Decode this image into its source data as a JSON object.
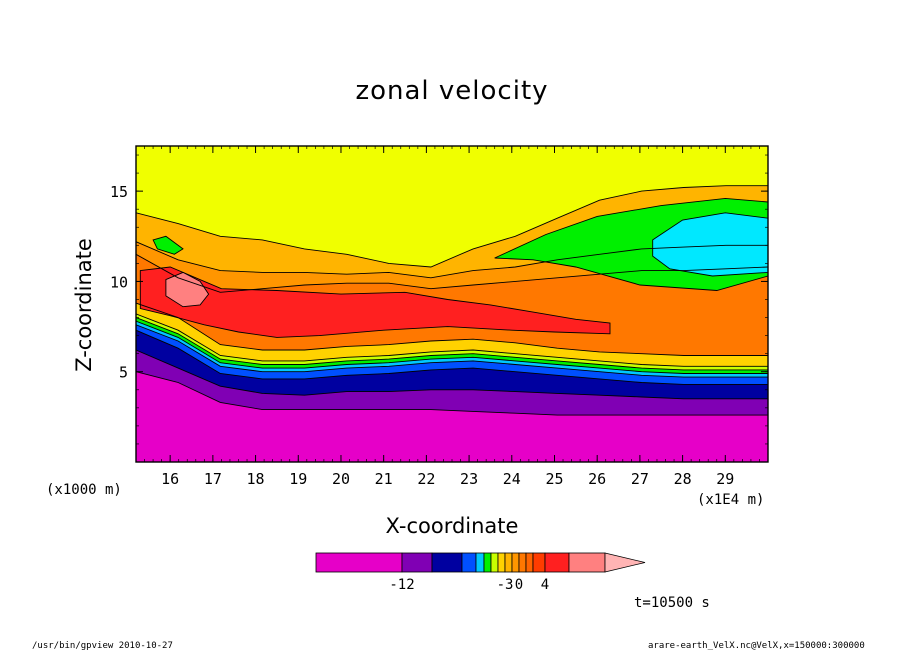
{
  "chart_data": {
    "type": "heatmap",
    "title": "zonal velocity",
    "xlabel": "X-coordinate",
    "ylabel": "Z-coordinate",
    "x_unit_label": "(x1E4 m)",
    "y_unit_label": "(x1000 m)",
    "x_ticks": [
      16,
      17,
      18,
      19,
      20,
      21,
      22,
      23,
      24,
      25,
      26,
      27,
      28,
      29
    ],
    "y_ticks": [
      5,
      10,
      15
    ],
    "xlim": [
      15.2,
      30.0
    ],
    "ylim": [
      0.0,
      17.5
    ],
    "colorbar": {
      "levels": [
        -15,
        -12,
        -10,
        -8,
        -6,
        -5,
        -4,
        -3,
        -2,
        -1,
        0,
        1,
        2,
        3,
        4,
        6,
        8
      ],
      "colors": [
        "#e600c8",
        "#8000b4",
        "#0000a0",
        "#0050ff",
        "#00c8ff",
        "#00f000",
        "#c8ff00",
        "#ffd200",
        "#ffb400",
        "#ff9600",
        "#ff7800",
        "#ff6400",
        "#ff3c00",
        "#ff2020",
        "#ff8080",
        "#ffb4b4"
      ],
      "tick_labels": [
        "-12",
        "-3",
        "0",
        "4"
      ],
      "tick_values": [
        -12,
        -3,
        0,
        4
      ]
    },
    "regions": [
      {
        "name": "magenta",
        "value_range": "< -12",
        "color": "#e600c8",
        "lower": [
          0,
          0,
          0,
          0,
          0,
          0,
          0,
          0,
          0,
          0,
          0,
          0,
          0,
          0,
          0,
          0
        ],
        "upper": [
          5.0,
          4.4,
          3.3,
          2.9,
          2.9,
          2.9,
          2.9,
          2.9,
          2.8,
          2.7,
          2.6,
          2.6,
          2.6,
          2.6,
          2.6,
          2.6
        ]
      },
      {
        "name": "purple",
        "value_range": "-12 to -10",
        "color": "#8000b4",
        "lower": [
          5.0,
          4.4,
          3.3,
          2.9,
          2.9,
          2.9,
          2.9,
          2.9,
          2.8,
          2.7,
          2.6,
          2.6,
          2.6,
          2.6,
          2.6,
          2.6
        ],
        "upper": [
          6.2,
          5.2,
          4.2,
          3.8,
          3.7,
          3.9,
          3.9,
          4.0,
          4.0,
          3.9,
          3.8,
          3.7,
          3.6,
          3.5,
          3.5,
          3.5
        ]
      },
      {
        "name": "dark-blue",
        "value_range": "-10 to -8",
        "color": "#0000a0",
        "lower": [
          6.2,
          5.2,
          4.2,
          3.8,
          3.7,
          3.9,
          3.9,
          4.0,
          4.0,
          3.9,
          3.8,
          3.7,
          3.6,
          3.5,
          3.5,
          3.5
        ],
        "upper": [
          7.3,
          6.3,
          4.9,
          4.6,
          4.6,
          4.8,
          4.9,
          5.1,
          5.2,
          5.0,
          4.8,
          4.6,
          4.4,
          4.3,
          4.3,
          4.3
        ]
      },
      {
        "name": "blue",
        "value_range": "-8 to -6",
        "color": "#0050ff",
        "lower": [
          7.3,
          6.3,
          4.9,
          4.6,
          4.6,
          4.8,
          4.9,
          5.1,
          5.2,
          5.0,
          4.8,
          4.6,
          4.4,
          4.3,
          4.3,
          4.3
        ],
        "upper": [
          7.6,
          6.7,
          5.3,
          5.0,
          5.0,
          5.2,
          5.3,
          5.5,
          5.6,
          5.4,
          5.2,
          5.0,
          4.8,
          4.7,
          4.7,
          4.7
        ]
      },
      {
        "name": "light-blue",
        "value_range": "-6 to -5",
        "color": "#00c8ff",
        "lower": [
          7.6,
          6.7,
          5.3,
          5.0,
          5.0,
          5.2,
          5.3,
          5.5,
          5.6,
          5.4,
          5.2,
          5.0,
          4.8,
          4.7,
          4.7,
          4.7
        ],
        "upper": [
          7.8,
          6.9,
          5.5,
          5.2,
          5.2,
          5.4,
          5.5,
          5.7,
          5.8,
          5.6,
          5.4,
          5.2,
          5.0,
          4.9,
          4.9,
          4.9
        ]
      },
      {
        "name": "green",
        "value_range": "-5 to -4",
        "color": "#00f000",
        "lower": [
          7.8,
          6.9,
          5.5,
          5.2,
          5.2,
          5.4,
          5.5,
          5.7,
          5.8,
          5.6,
          5.4,
          5.2,
          5.0,
          4.9,
          4.9,
          4.9
        ],
        "upper": [
          8.0,
          7.1,
          5.7,
          5.4,
          5.4,
          5.6,
          5.7,
          5.9,
          6.0,
          5.8,
          5.6,
          5.4,
          5.2,
          5.1,
          5.1,
          5.1
        ]
      },
      {
        "name": "yellow-green",
        "value_range": "-4 to -3",
        "color": "#c8ff00",
        "lower": [
          8.0,
          7.1,
          5.7,
          5.4,
          5.4,
          5.6,
          5.7,
          5.9,
          6.0,
          5.8,
          5.6,
          5.4,
          5.2,
          5.1,
          5.1,
          5.1
        ],
        "upper": [
          8.2,
          7.3,
          5.9,
          5.6,
          5.6,
          5.8,
          5.9,
          6.1,
          6.2,
          6.0,
          5.8,
          5.6,
          5.4,
          5.3,
          5.3,
          5.3
        ]
      },
      {
        "name": "gold",
        "value_range": "-3 to 0",
        "color": "#ffd200",
        "lower": [
          8.2,
          7.3,
          5.9,
          5.6,
          5.6,
          5.8,
          5.9,
          6.1,
          6.2,
          6.0,
          5.8,
          5.6,
          5.4,
          5.3,
          5.3,
          5.3
        ],
        "upper": [
          8.8,
          8.0,
          6.5,
          6.2,
          6.2,
          6.4,
          6.5,
          6.7,
          6.8,
          6.6,
          6.3,
          6.1,
          6.0,
          5.9,
          5.9,
          5.9
        ]
      },
      {
        "name": "dark-orange",
        "value_range": "0 to 4",
        "color": "#ff7800",
        "lower": [
          8.8,
          8.0,
          6.5,
          6.2,
          6.2,
          6.4,
          6.5,
          6.7,
          6.8,
          6.6,
          6.3,
          6.1,
          6.0,
          5.9,
          5.9,
          5.9
        ],
        "upper": [
          11.5,
          10.2,
          9.4,
          9.6,
          9.8,
          9.9,
          9.9,
          9.6,
          9.8,
          10.0,
          10.2,
          10.4,
          10.6,
          10.6,
          10.7,
          10.8
        ]
      },
      {
        "name": "orange",
        "value_range": "0 to 4",
        "color": "#ff9600",
        "lower": [
          11.5,
          10.2,
          9.4,
          9.6,
          9.8,
          9.9,
          9.9,
          9.6,
          9.8,
          10.0,
          10.2,
          10.4,
          10.6,
          10.6,
          10.7,
          10.8
        ],
        "upper": [
          12.2,
          11.2,
          10.6,
          10.5,
          10.5,
          10.4,
          10.5,
          10.2,
          10.6,
          10.8,
          11.2,
          11.5,
          11.8,
          11.9,
          12.0,
          12.0
        ]
      },
      {
        "name": "light-orange",
        "value_range": "0 to 4",
        "color": "#ffb400",
        "lower": [
          12.2,
          11.2,
          10.6,
          10.5,
          10.5,
          10.4,
          10.5,
          10.2,
          10.6,
          10.8,
          11.2,
          11.5,
          11.8,
          11.9,
          12.0,
          12.0
        ],
        "upper": [
          13.8,
          13.2,
          12.5,
          12.3,
          11.8,
          11.5,
          11.0,
          10.8,
          11.8,
          12.5,
          13.5,
          14.5,
          15.0,
          15.2,
          15.3,
          15.3
        ]
      },
      {
        "name": "yellow",
        "value_range": "-3 to 0",
        "color": "#f0ff00",
        "lower": [
          13.8,
          13.2,
          12.5,
          12.3,
          11.8,
          11.5,
          11.0,
          10.8,
          11.8,
          12.5,
          13.5,
          14.5,
          15.0,
          15.2,
          15.3,
          15.3
        ],
        "upper": [
          17.5,
          17.5,
          17.5,
          17.5,
          17.5,
          17.5,
          17.5,
          17.5,
          17.5,
          17.5,
          17.5,
          17.5,
          17.5,
          17.5,
          17.5,
          17.5
        ]
      }
    ],
    "blobs": [
      {
        "name": "green-band-upper-right",
        "color": "#00f000",
        "points": [
          [
            23.6,
            11.3
          ],
          [
            24.8,
            12.6
          ],
          [
            26.0,
            13.6
          ],
          [
            27.5,
            14.2
          ],
          [
            29.0,
            14.6
          ],
          [
            30.0,
            14.4
          ],
          [
            30.0,
            10.3
          ],
          [
            28.8,
            9.5
          ],
          [
            27.0,
            9.8
          ],
          [
            25.5,
            10.8
          ],
          [
            24.5,
            11.2
          ]
        ]
      },
      {
        "name": "cyan-region",
        "color": "#00e8ff",
        "points": [
          [
            27.3,
            12.3
          ],
          [
            28.0,
            13.4
          ],
          [
            29.0,
            13.8
          ],
          [
            30.0,
            13.5
          ],
          [
            30.0,
            10.5
          ],
          [
            28.7,
            10.3
          ],
          [
            27.7,
            10.7
          ],
          [
            27.3,
            11.4
          ]
        ]
      },
      {
        "name": "small-green-left",
        "color": "#00f000",
        "points": [
          [
            15.6,
            12.3
          ],
          [
            15.9,
            12.5
          ],
          [
            16.3,
            11.8
          ],
          [
            16.1,
            11.5
          ],
          [
            15.7,
            11.8
          ]
        ]
      },
      {
        "name": "red-core",
        "color": "#ff2020",
        "points": [
          [
            15.3,
            10.6
          ],
          [
            16.0,
            10.8
          ],
          [
            17.2,
            9.6
          ],
          [
            18.5,
            9.5
          ],
          [
            20.0,
            9.3
          ],
          [
            21.5,
            9.4
          ],
          [
            22.5,
            9.0
          ],
          [
            23.5,
            8.7
          ],
          [
            24.5,
            8.3
          ],
          [
            25.5,
            7.9
          ],
          [
            26.3,
            7.7
          ],
          [
            26.3,
            7.1
          ],
          [
            25.0,
            7.2
          ],
          [
            24.0,
            7.3
          ],
          [
            22.5,
            7.5
          ],
          [
            21.0,
            7.3
          ],
          [
            19.5,
            7.0
          ],
          [
            18.5,
            6.9
          ],
          [
            17.6,
            7.2
          ],
          [
            16.8,
            7.6
          ],
          [
            16.0,
            8.1
          ],
          [
            15.3,
            8.5
          ]
        ]
      },
      {
        "name": "pink-core",
        "color": "#ff8080",
        "points": [
          [
            15.9,
            10.1
          ],
          [
            16.3,
            10.5
          ],
          [
            16.7,
            10.0
          ],
          [
            16.9,
            9.3
          ],
          [
            16.7,
            8.7
          ],
          [
            16.3,
            8.6
          ],
          [
            15.9,
            9.2
          ]
        ]
      }
    ]
  },
  "footer": {
    "left": "/usr/bin/gpview  2010-10-27",
    "right": "arare-earth_VelX.nc@VelX,x=150000:300000",
    "time": "t=10500 s"
  }
}
